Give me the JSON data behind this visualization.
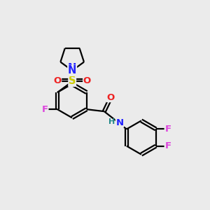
{
  "bg_color": "#ebebeb",
  "atom_colors": {
    "C": "#000000",
    "N": "#2222ff",
    "O": "#ee2222",
    "F": "#dd44dd",
    "S": "#cccc00",
    "H": "#228888"
  },
  "lw": 1.6,
  "fs": 9.5,
  "r_hex": 0.82,
  "pyrl_r": 0.6
}
